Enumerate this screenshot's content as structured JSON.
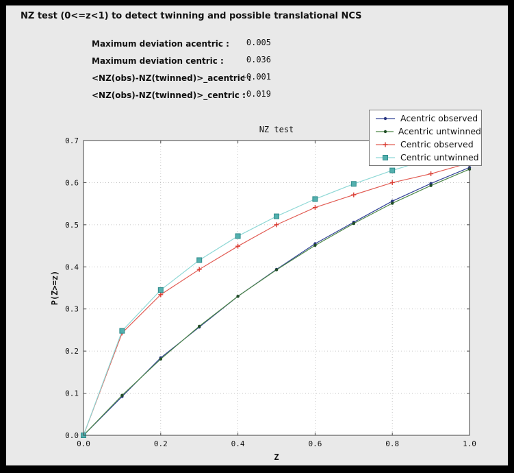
{
  "window": {
    "title": "NZ test (0<=z<1) to detect twinning and possible translational NCS"
  },
  "stats": [
    {
      "label": "Maximum deviation acentric :",
      "value": "0.005"
    },
    {
      "label": "Maximum deviation centric :",
      "value": "0.036"
    },
    {
      "label": "<NZ(obs)-NZ(twinned)>_acentric :",
      "value": "+0.001"
    },
    {
      "label": "<NZ(obs)-NZ(twinned)>_centric :",
      "value": "-0.019"
    }
  ],
  "chart_data": {
    "type": "line",
    "title": "NZ test",
    "xlabel": "Z",
    "ylabel": "P(Z>=z)",
    "xlim": [
      0.0,
      1.0
    ],
    "ylim": [
      0.0,
      0.7
    ],
    "xticks": [
      0.0,
      0.2,
      0.4,
      0.6,
      0.8,
      1.0
    ],
    "yticks": [
      0.0,
      0.1,
      0.2,
      0.3,
      0.4,
      0.5,
      0.6,
      0.7
    ],
    "grid": true,
    "legend_position": "upper right",
    "x": [
      0.0,
      0.1,
      0.2,
      0.3,
      0.4,
      0.5,
      0.6,
      0.7,
      0.8,
      0.9,
      1.0
    ],
    "series": [
      {
        "name": "Acentric observed",
        "color": "#334398",
        "marker": "dot",
        "marker_color": "#2a3780",
        "values": [
          0.0,
          0.092,
          0.184,
          0.257,
          0.33,
          0.394,
          0.455,
          0.506,
          0.556,
          0.598,
          0.636
        ]
      },
      {
        "name": "Acentric untwinned",
        "color": "#4d8748",
        "marker": "dot",
        "marker_color": "#214d26",
        "values": [
          0.0,
          0.095,
          0.181,
          0.259,
          0.33,
          0.393,
          0.451,
          0.503,
          0.551,
          0.593,
          0.632
        ]
      },
      {
        "name": "Centric observed",
        "color": "#e25d55",
        "marker": "plus",
        "marker_color": "#d93a30",
        "values": [
          0.0,
          0.243,
          0.334,
          0.394,
          0.449,
          0.5,
          0.541,
          0.571,
          0.6,
          0.621,
          0.647
        ]
      },
      {
        "name": "Centric untwinned",
        "color": "#8fd8d6",
        "marker": "square",
        "marker_color": "#53b0ae",
        "marker_edge": "#2e8b8b",
        "values": [
          0.0,
          0.248,
          0.345,
          0.416,
          0.473,
          0.52,
          0.561,
          0.597,
          0.629,
          0.657,
          0.683
        ]
      }
    ]
  }
}
